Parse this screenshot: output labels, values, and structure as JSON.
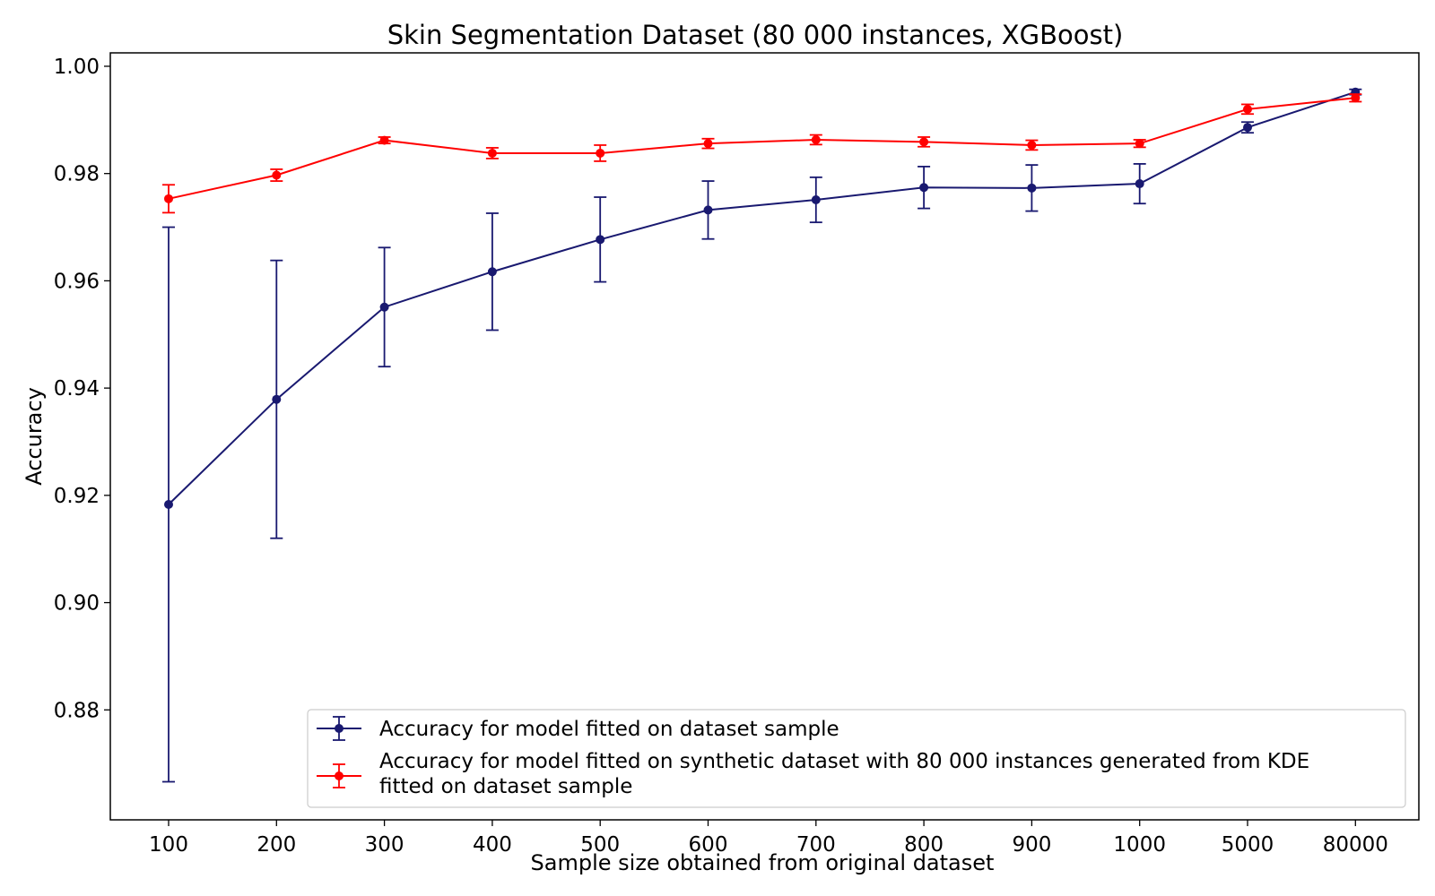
{
  "chart_data": {
    "type": "line",
    "title": "Skin Segmentation Dataset (80 000 instances, XGBoost)",
    "xlabel": "Sample size obtained from original dataset",
    "ylabel": "Accuracy",
    "categories": [
      "100",
      "200",
      "300",
      "400",
      "500",
      "600",
      "700",
      "800",
      "900",
      "1000",
      "5000",
      "80000"
    ],
    "yticks": [
      "0.88",
      "0.90",
      "0.92",
      "0.94",
      "0.96",
      "0.98",
      "1.00"
    ],
    "ylim": [
      0.8595,
      1.0025
    ],
    "grid": false,
    "legend_position": "lower-right",
    "error_bars": true,
    "series": [
      {
        "name": "Accuracy for model fitted on dataset sample",
        "color": "#191970",
        "values": [
          0.9183,
          0.9379,
          0.9551,
          0.9617,
          0.9677,
          0.9732,
          0.9751,
          0.9774,
          0.9773,
          0.9781,
          0.9886,
          0.9952
        ],
        "err": [
          0.0517,
          0.0259,
          0.0111,
          0.0109,
          0.0079,
          0.0054,
          0.0042,
          0.0039,
          0.0043,
          0.0037,
          0.001,
          0.0005
        ]
      },
      {
        "name": "Accuracy for model fitted on synthetic dataset with 80 000 instances generated from KDE fitted on dataset sample",
        "name_lines": [
          "Accuracy for model fitted on synthetic dataset with 80 000 instances generated from KDE",
          "fitted on dataset sample"
        ],
        "color": "#ff0000",
        "values": [
          0.9753,
          0.9797,
          0.9862,
          0.9838,
          0.9838,
          0.9856,
          0.9863,
          0.9859,
          0.9853,
          0.9856,
          0.992,
          0.9941
        ],
        "err": [
          0.0026,
          0.0011,
          0.0006,
          0.001,
          0.0015,
          0.0009,
          0.0009,
          0.0009,
          0.0009,
          0.0007,
          0.0009,
          0.0007
        ]
      }
    ]
  }
}
